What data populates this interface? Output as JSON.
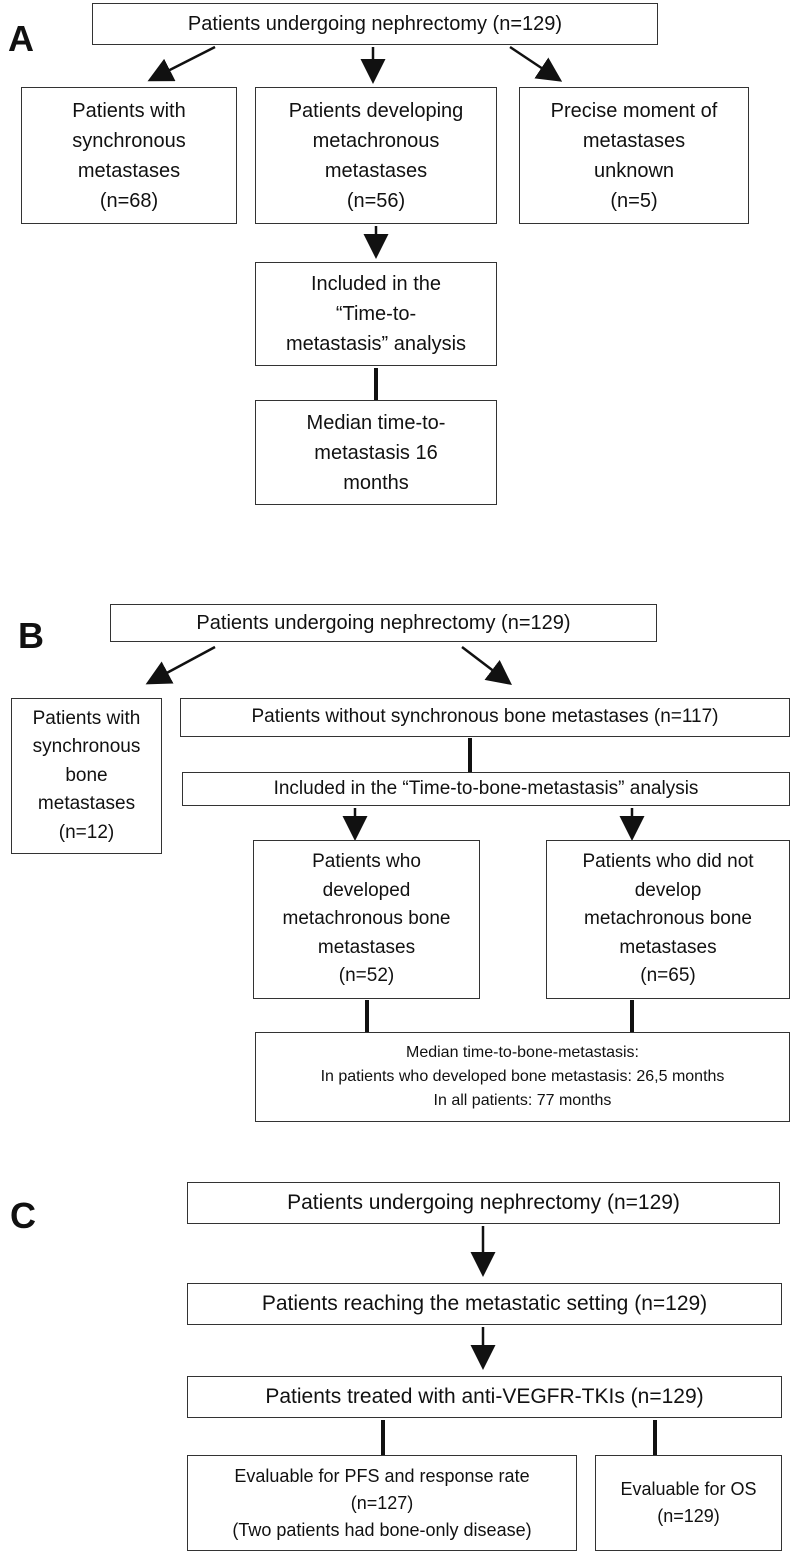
{
  "panels": [
    {
      "label": "A",
      "nodes": [
        {
          "lines": [
            "Patients undergoing nephrectomy (n=129)"
          ]
        },
        {
          "lines": [
            "Patients with",
            "synchronous",
            "metastases",
            "(n=68)"
          ]
        },
        {
          "lines": [
            "Patients developing",
            "metachronous",
            "metastases",
            "(n=56)"
          ]
        },
        {
          "lines": [
            "Precise moment of",
            "metastases",
            "unknown",
            "(n=5)"
          ]
        },
        {
          "lines": [
            "Included in the",
            "“Time-to-",
            "metastasis” analysis"
          ]
        },
        {
          "lines": [
            "Median time-to-",
            "metastasis 16",
            "months"
          ]
        }
      ]
    },
    {
      "label": "B",
      "nodes": [
        {
          "lines": [
            "Patients undergoing nephrectomy (n=129)"
          ]
        },
        {
          "lines": [
            "Patients with",
            "synchronous",
            "bone",
            "metastases",
            "(n=12)"
          ]
        },
        {
          "lines": [
            "Patients without synchronous bone metastases (n=117)"
          ]
        },
        {
          "lines": [
            "Included in the “Time-to-bone-metastasis” analysis"
          ]
        },
        {
          "lines": [
            "Patients who",
            "developed",
            "metachronous bone",
            "metastases",
            "(n=52)"
          ]
        },
        {
          "lines": [
            "Patients who did not",
            "develop",
            "metachronous bone",
            "metastases",
            "(n=65)"
          ]
        },
        {
          "lines": [
            "Median time-to-bone-metastasis:",
            "In patients who developed bone metastasis: 26,5 months",
            "In all patients: 77 months"
          ]
        }
      ]
    },
    {
      "label": "C",
      "nodes": [
        {
          "lines": [
            "Patients undergoing nephrectomy (n=129)"
          ]
        },
        {
          "lines": [
            "Patients reaching the metastatic setting (n=129)"
          ]
        },
        {
          "lines": [
            "Patients treated with anti-VEGFR-TKIs (n=129)"
          ]
        },
        {
          "lines": [
            "Evaluable for PFS and response rate",
            "(n=127)",
            "(Two patients had bone-only disease)"
          ]
        },
        {
          "lines": [
            "Evaluable for OS",
            "(n=129)"
          ]
        }
      ]
    }
  ]
}
